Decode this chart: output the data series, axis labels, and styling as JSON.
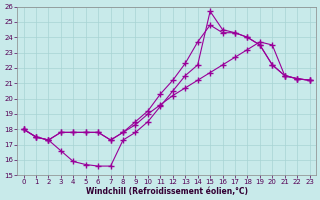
{
  "xlabel": "Windchill (Refroidissement éolien,°C)",
  "xlim": [
    -0.5,
    23.5
  ],
  "ylim": [
    15,
    26
  ],
  "xticks": [
    0,
    1,
    2,
    3,
    4,
    5,
    6,
    7,
    8,
    9,
    10,
    11,
    12,
    13,
    14,
    15,
    16,
    17,
    18,
    19,
    20,
    21,
    22,
    23
  ],
  "yticks": [
    15,
    16,
    17,
    18,
    19,
    20,
    21,
    22,
    23,
    24,
    25,
    26
  ],
  "bg_color": "#c8eaea",
  "line_color": "#990099",
  "grid_color": "#a8d4d4",
  "line1_x": [
    0,
    1,
    2,
    3,
    4,
    5,
    6,
    7,
    8,
    9,
    10,
    11,
    12,
    13,
    14,
    15,
    16,
    17,
    18,
    19,
    20,
    21,
    22,
    23
  ],
  "line1_y": [
    18.0,
    17.5,
    17.3,
    16.6,
    15.9,
    15.7,
    15.6,
    15.6,
    17.3,
    17.8,
    18.5,
    19.5,
    20.5,
    21.5,
    22.2,
    25.7,
    24.5,
    24.3,
    24.0,
    23.5,
    22.2,
    21.5,
    21.3,
    21.2
  ],
  "line2_x": [
    0,
    1,
    2,
    3,
    4,
    5,
    6,
    7,
    8,
    9,
    10,
    11,
    12,
    13,
    14,
    15,
    16,
    17,
    18,
    19,
    20,
    21,
    22,
    23
  ],
  "line2_y": [
    18.0,
    17.5,
    17.3,
    17.8,
    17.8,
    17.8,
    17.8,
    17.3,
    17.8,
    18.5,
    19.2,
    20.3,
    21.2,
    22.3,
    23.7,
    24.8,
    24.3,
    24.3,
    24.0,
    23.5,
    22.2,
    21.5,
    21.3,
    21.2
  ],
  "line3_x": [
    0,
    1,
    2,
    3,
    4,
    5,
    6,
    7,
    8,
    9,
    10,
    11,
    12,
    13,
    14,
    15,
    16,
    17,
    18,
    19,
    20,
    21,
    22,
    23
  ],
  "line3_y": [
    18.0,
    17.5,
    17.3,
    17.8,
    17.8,
    17.8,
    17.8,
    17.3,
    17.8,
    18.3,
    19.0,
    19.6,
    20.2,
    20.7,
    21.2,
    21.7,
    22.2,
    22.7,
    23.2,
    23.7,
    23.5,
    21.5,
    21.3,
    21.2
  ]
}
